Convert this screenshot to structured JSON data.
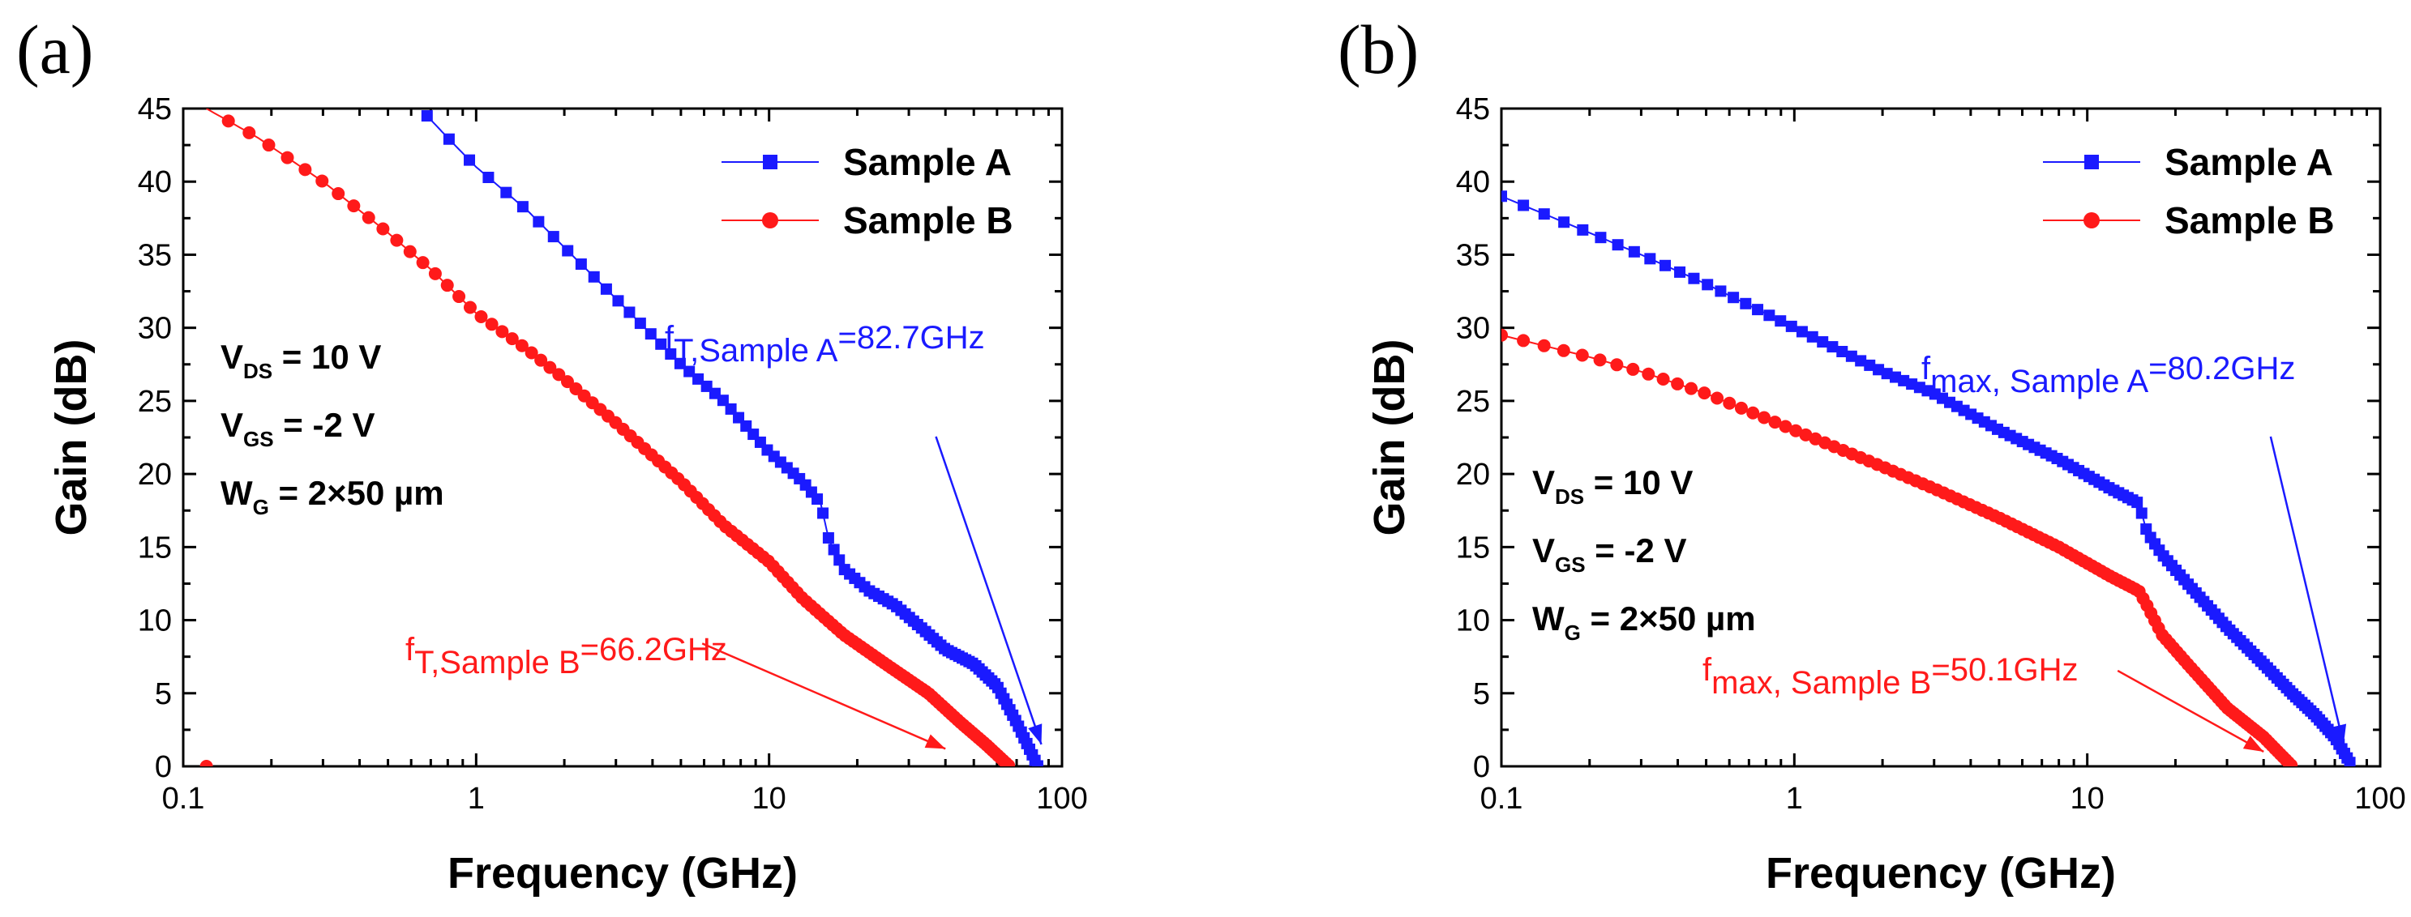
{
  "chart_data": [
    {
      "type": "line",
      "panel_label": "(a)",
      "xlabel": "Frequency (GHz)",
      "ylabel": "Gain (dB)",
      "xscale": "log",
      "xlim": [
        0.1,
        100
      ],
      "ylim": [
        0,
        45
      ],
      "xticks": [
        "0.1",
        "1",
        "10",
        "100"
      ],
      "yticks": [
        "0",
        "5",
        "10",
        "15",
        "20",
        "25",
        "30",
        "35",
        "40",
        "45"
      ],
      "legend_position": "top-right",
      "series": [
        {
          "name": "Sample A",
          "color": "#1a1aff",
          "marker": "square",
          "x": [
            0.68,
            0.8,
            1.0,
            1.5,
            2.0,
            3.0,
            5.0,
            7.0,
            10.0,
            13.0,
            15.0,
            16.0,
            18.0,
            22.0,
            27.0,
            33.0,
            40.0,
            50.0,
            60.0,
            70.0,
            82.7
          ],
          "y": [
            44.5,
            43.0,
            41.0,
            38.0,
            35.5,
            32.0,
            27.5,
            25.0,
            21.5,
            19.5,
            18.0,
            15.5,
            13.5,
            12.0,
            11.0,
            9.5,
            8.0,
            7.0,
            5.5,
            3.0,
            0.0
          ]
        },
        {
          "name": "Sample B",
          "color": "#ff1a1a",
          "marker": "circle",
          "x": [
            0.12,
            0.18,
            0.3,
            0.5,
            0.7,
            1.0,
            1.5,
            2.0,
            3.0,
            5.0,
            7.0,
            10.0,
            13.0,
            18.0,
            25.0,
            35.0,
            45.0,
            55.0,
            66.2
          ],
          "y": [
            45.0,
            43.0,
            40.0,
            36.5,
            34.0,
            31.0,
            28.5,
            26.5,
            23.5,
            19.5,
            16.5,
            14.0,
            11.5,
            9.0,
            7.0,
            5.0,
            3.0,
            1.5,
            0.0
          ]
        }
      ],
      "conditions": [
        {
          "main": "V",
          "sub": "DS",
          "rest": " = 10 V"
        },
        {
          "main": "V",
          "sub": "GS",
          "rest": " = -2 V"
        },
        {
          "main": "W",
          "sub": "G",
          "rest": " = 2×50 µm"
        }
      ],
      "annotations": [
        {
          "main": "f",
          "sub": "T,Sample A",
          "rest": "=82.7GHz",
          "color": "#1a1aff",
          "arrow_to": {
            "x": 85,
            "y": 1.5
          }
        },
        {
          "main": "f",
          "sub": "T,Sample B",
          "rest": "=66.2GHz",
          "color": "#ff1a1a",
          "arrow_to": {
            "x": 40,
            "y": 1.2
          }
        }
      ]
    },
    {
      "type": "line",
      "panel_label": "(b)",
      "xlabel": "Frequency (GHz)",
      "ylabel": "Gain (dB)",
      "xscale": "log",
      "xlim": [
        0.1,
        100
      ],
      "ylim": [
        0,
        45
      ],
      "xticks": [
        "0.1",
        "1",
        "10",
        "100"
      ],
      "yticks": [
        "0",
        "5",
        "10",
        "15",
        "20",
        "25",
        "30",
        "35",
        "40",
        "45"
      ],
      "legend_position": "top-right",
      "series": [
        {
          "name": "Sample A",
          "color": "#1a1aff",
          "marker": "square",
          "x": [
            0.1,
            0.2,
            0.3,
            0.5,
            1.0,
            2.0,
            3.0,
            5.0,
            8.0,
            12.0,
            15.0,
            16.0,
            18.0,
            22.0,
            30.0,
            40.0,
            50.0,
            60.0,
            70.0,
            80.2
          ],
          "y": [
            39.0,
            36.5,
            35.0,
            33.0,
            30.0,
            27.0,
            25.5,
            23.0,
            21.0,
            19.0,
            18.0,
            16.0,
            14.5,
            12.5,
            9.5,
            7.0,
            5.0,
            3.5,
            2.0,
            0.0
          ]
        },
        {
          "name": "Sample B",
          "color": "#ff1a1a",
          "marker": "circle",
          "x": [
            0.1,
            0.2,
            0.3,
            0.5,
            1.0,
            2.0,
            3.0,
            5.0,
            8.0,
            12.0,
            15.0,
            16.0,
            18.0,
            22.0,
            30.0,
            40.0,
            50.1
          ],
          "y": [
            29.5,
            28.0,
            27.0,
            25.5,
            23.0,
            20.5,
            19.0,
            17.0,
            15.0,
            13.0,
            12.0,
            11.0,
            9.0,
            7.0,
            4.0,
            2.0,
            0.0
          ]
        }
      ],
      "conditions": [
        {
          "main": "V",
          "sub": "DS",
          "rest": " = 10 V"
        },
        {
          "main": "V",
          "sub": "GS",
          "rest": " = -2 V"
        },
        {
          "main": "W",
          "sub": "G",
          "rest": " = 2×50 µm"
        }
      ],
      "annotations": [
        {
          "main": "f",
          "sub": "max, Sample A",
          "rest": "=80.2GHz",
          "color": "#1a1aff",
          "arrow_to": {
            "x": 75,
            "y": 1.5
          }
        },
        {
          "main": "f",
          "sub": "max, Sample B",
          "rest": "=50.1GHz",
          "color": "#ff1a1a",
          "arrow_to": {
            "x": 40,
            "y": 1.0
          }
        }
      ]
    }
  ]
}
